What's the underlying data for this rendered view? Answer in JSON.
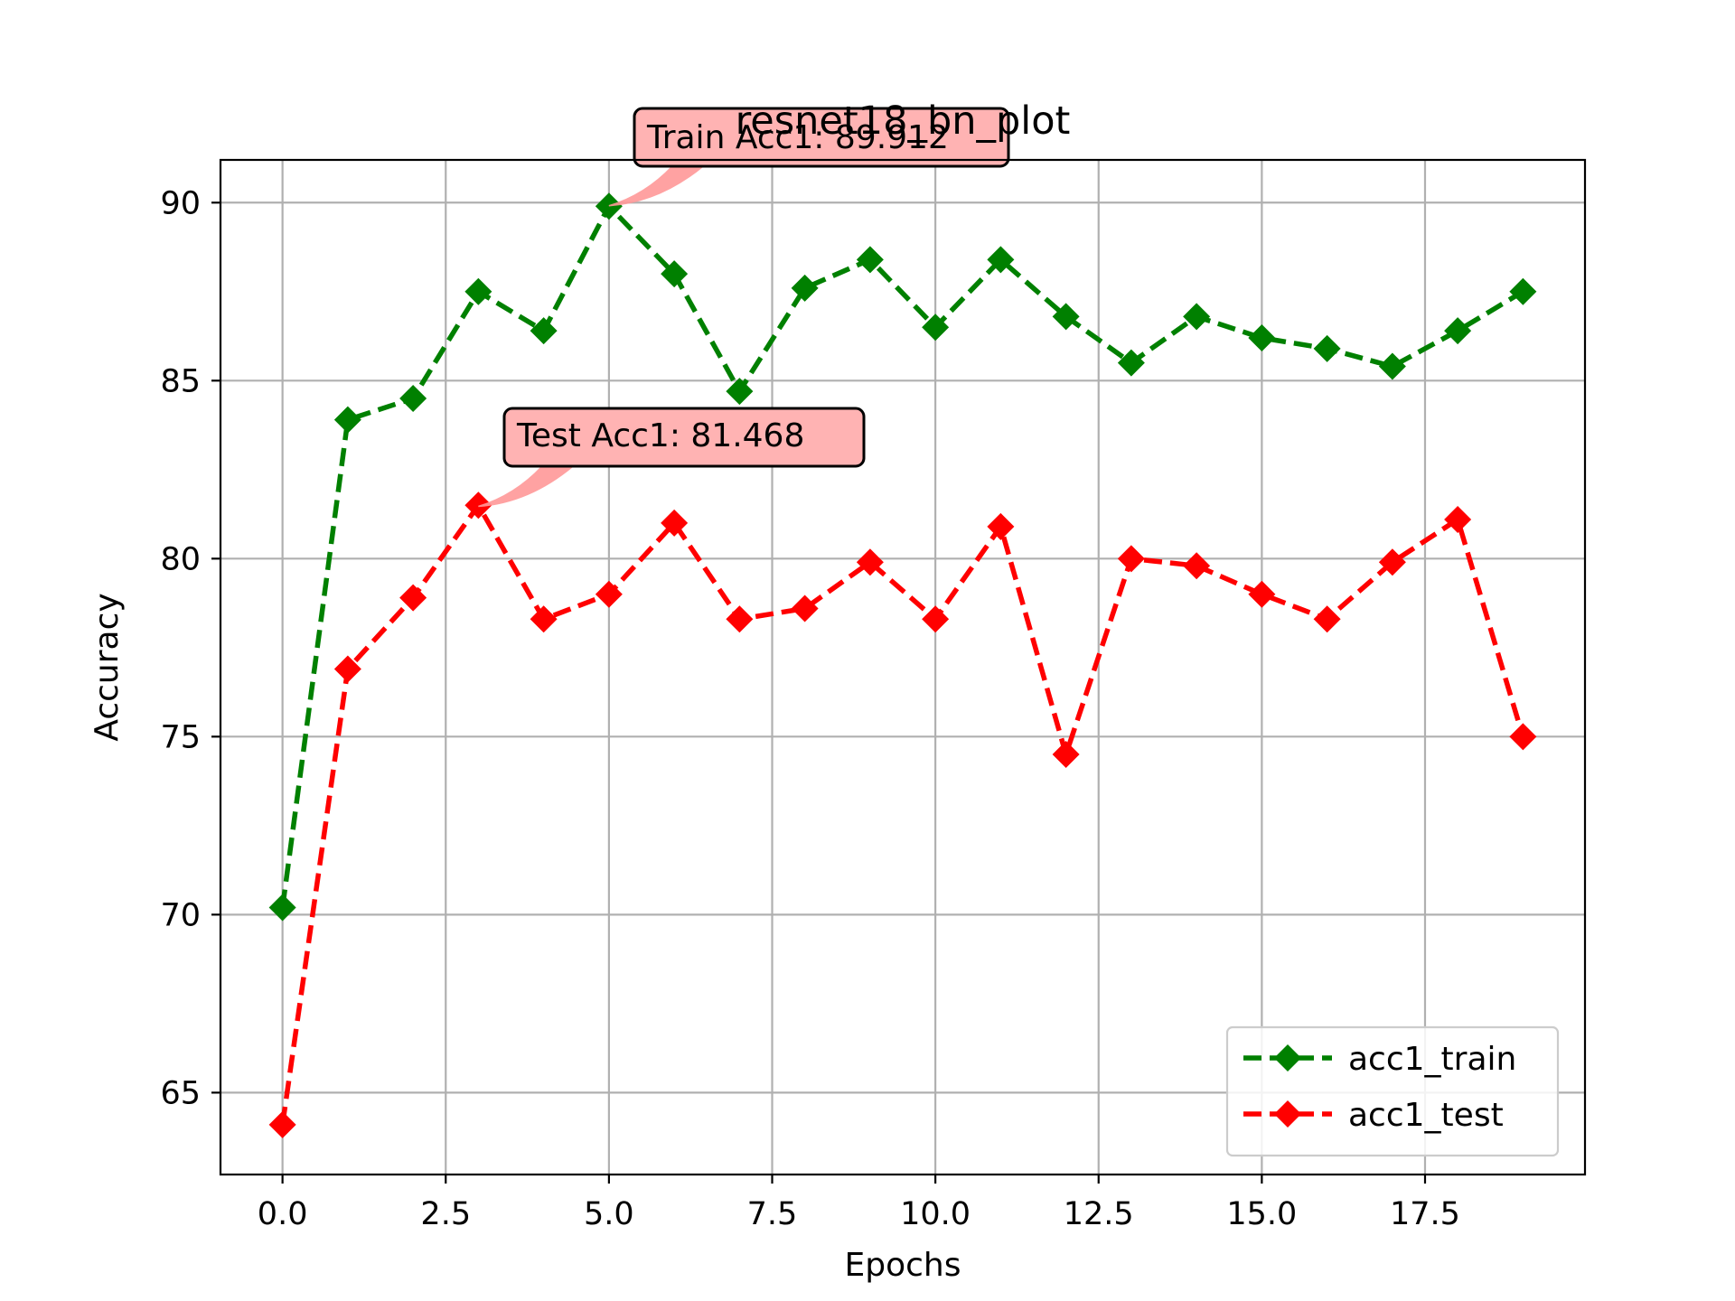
{
  "chart_data": {
    "type": "line",
    "title": "resnet18_bn_plot",
    "xlabel": "Epochs",
    "ylabel": "Accuracy",
    "xlim": [
      -0.95,
      19.95
    ],
    "ylim": [
      62.7,
      91.2
    ],
    "xticks": [
      0.0,
      2.5,
      5.0,
      7.5,
      10.0,
      12.5,
      15.0,
      17.5
    ],
    "xtick_labels": [
      "0.0",
      "2.5",
      "5.0",
      "7.5",
      "10.0",
      "12.5",
      "15.0",
      "17.5"
    ],
    "yticks": [
      65,
      70,
      75,
      80,
      85,
      90
    ],
    "ytick_labels": [
      "65",
      "70",
      "75",
      "80",
      "85",
      "90"
    ],
    "grid": true,
    "legend_position": "lower-right",
    "x": [
      0,
      1,
      2,
      3,
      4,
      5,
      6,
      7,
      8,
      9,
      10,
      11,
      12,
      13,
      14,
      15,
      16,
      17,
      18,
      19
    ],
    "series": [
      {
        "name": "acc1_train",
        "color": "#008000",
        "line_style": "dashed",
        "marker": "diamond",
        "values": [
          70.2,
          83.9,
          84.5,
          87.5,
          86.4,
          89.9,
          88.0,
          84.7,
          87.6,
          88.4,
          86.5,
          88.4,
          86.8,
          85.5,
          86.8,
          86.2,
          85.9,
          85.4,
          86.4,
          87.5
        ]
      },
      {
        "name": "acc1_test",
        "color": "#ff0000",
        "line_style": "dashed",
        "marker": "diamond",
        "values": [
          64.1,
          76.9,
          78.9,
          81.5,
          78.3,
          79.0,
          81.0,
          78.3,
          78.6,
          79.9,
          78.3,
          80.9,
          74.5,
          80.0,
          79.8,
          79.0,
          78.3,
          79.9,
          81.1,
          75.0
        ]
      }
    ],
    "annotations": [
      {
        "text": "Train Acc1: 89.912",
        "x": 5,
        "y": 89.912,
        "box_color": "#ffb3b3",
        "arrow_color": "#ff9999"
      },
      {
        "text": "Test Acc1: 81.468",
        "x": 3,
        "y": 81.468,
        "box_color": "#ffb3b3",
        "arrow_color": "#ff9999"
      }
    ]
  }
}
